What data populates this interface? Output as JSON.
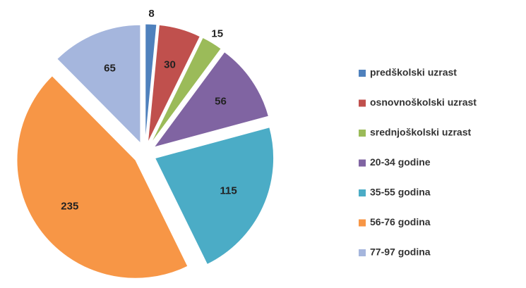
{
  "chart_data": {
    "type": "pie",
    "categories": [
      "predškolski uzrast",
      "osnovnoškolski uzrast",
      "srednjoškolski uzrast",
      "20-34 godine",
      "35-55 godina",
      "56-76 godina",
      "77-97 godina"
    ],
    "values": [
      8,
      30,
      15,
      56,
      115,
      235,
      65
    ],
    "colors": [
      "#4f81bd",
      "#c0504d",
      "#9bbb59",
      "#8064a2",
      "#4bacc6",
      "#f79646",
      "#a5b6dd"
    ],
    "exploded": true,
    "legend": "right"
  }
}
